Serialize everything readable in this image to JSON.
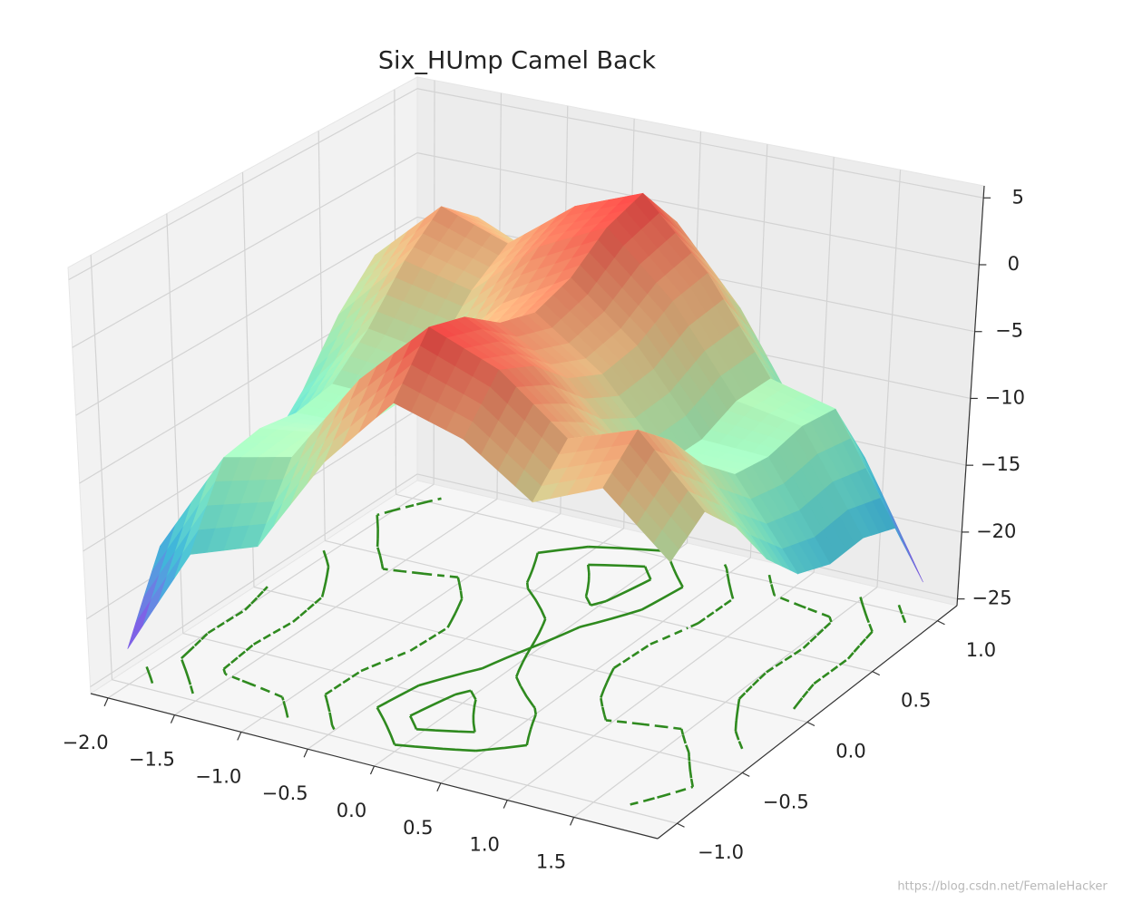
{
  "chart_data": {
    "type": "surface",
    "title": "Six_HUmp Camel Back",
    "x": [
      -2,
      -1.5,
      -1,
      -0.5,
      0,
      0.5,
      1,
      1.5,
      2
    ],
    "y": [
      -1,
      -0.75,
      -0.5,
      -0.25,
      0,
      0.25,
      0.5,
      0.75,
      1
    ],
    "z": [
      [
        -22.9,
        -14.7,
        -12.9,
        -5.5,
        0,
        -1.5,
        -4.9,
        -2.7,
        -6.9
      ],
      [
        -17.0,
        -9.2,
        -8.0,
        -1.1,
        3.9,
        1.9,
        -2.0,
        -0.2,
        -5.0
      ],
      [
        -15.9,
        -8.7,
        -7.9,
        -1.5,
        3.0,
        0.5,
        -3.9,
        -2.7,
        -7.9
      ],
      [
        -16.0,
        -9.2,
        -9.0,
        -3.1,
        0.9,
        -2.1,
        -7.0,
        -6.2,
        -12.0
      ],
      [
        -14.9,
        -8.7,
        -8.9,
        -3.5,
        0,
        -3.5,
        -8.9,
        -8.7,
        -14.9
      ],
      [
        -12.0,
        -6.2,
        -7.0,
        -2.1,
        0.9,
        -3.1,
        -9.0,
        -9.2,
        -16.0
      ],
      [
        -7.9,
        -2.7,
        -3.9,
        0.5,
        3.0,
        -1.5,
        -7.9,
        -8.7,
        -15.9
      ],
      [
        -5.0,
        -0.2,
        -2.0,
        1.9,
        3.9,
        -1.1,
        -8.0,
        -9.2,
        -17.0
      ],
      [
        -6.9,
        -2.7,
        -4.9,
        -1.5,
        0,
        -5.5,
        -12.9,
        -14.7,
        -22.9
      ]
    ],
    "colormap": "rainbow",
    "xlim": [
      -2.13,
      2.13
    ],
    "ylim": [
      -1.15,
      1.15
    ],
    "zlim": [
      -25.5,
      5.9
    ],
    "xticks": [
      {
        "value": -2,
        "label": "−2.0"
      },
      {
        "value": -1.5,
        "label": "−1.5"
      },
      {
        "value": -1,
        "label": "−1.0"
      },
      {
        "value": -0.5,
        "label": "−0.5"
      },
      {
        "value": 0,
        "label": "0.0"
      },
      0.5,
      {
        "value": 1,
        "label": "1.0"
      },
      1.5
    ],
    "yticks": [
      {
        "value": -1,
        "label": "−1.0"
      },
      {
        "value": -0.5,
        "label": "−0.5"
      },
      {
        "value": 0,
        "label": "0.0"
      },
      0.5,
      {
        "value": 1,
        "label": "1.0"
      }
    ],
    "zticks": [
      {
        "value": -25,
        "label": "−25"
      },
      {
        "value": -20,
        "label": "−20"
      },
      {
        "value": -15,
        "label": "−15"
      },
      {
        "value": -10,
        "label": "−10"
      },
      {
        "value": -5,
        "label": "−5"
      },
      0,
      5
    ],
    "grid": true,
    "contour_levels": [
      -20,
      -15,
      -10,
      -5,
      0,
      2.5
    ],
    "contour_offset": -25,
    "contour_color": "#2f8a1f"
  },
  "watermark": "https://blog.csdn.net/FemaleHacker"
}
